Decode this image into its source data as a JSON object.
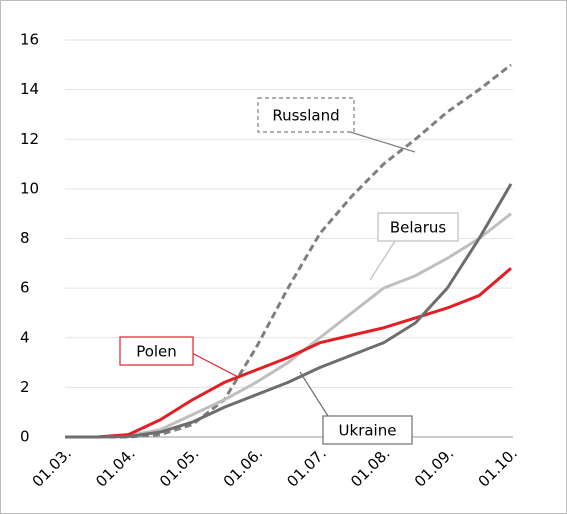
{
  "chart_data": {
    "type": "line",
    "categories": [
      "01.03.",
      null,
      "01.04.",
      null,
      "01.05.",
      null,
      "01.06.",
      null,
      "01.07.",
      null,
      "01.08.",
      null,
      "01.09.",
      null,
      "01.10."
    ],
    "series": [
      {
        "name": "Russland",
        "color": "#7f7f7f",
        "dashed": true,
        "values": [
          0,
          0,
          0,
          0.1,
          0.5,
          1.5,
          3.6,
          6,
          8.2,
          9.7,
          11,
          12,
          13.1,
          14,
          15
        ]
      },
      {
        "name": "Belarus",
        "color": "#bfbfbf",
        "dashed": false,
        "values": [
          0,
          0,
          0.05,
          0.3,
          0.9,
          1.5,
          2.2,
          3,
          4,
          5,
          6,
          6.5,
          7.2,
          8,
          9
        ]
      },
      {
        "name": "Polen",
        "color": "#e31e24",
        "dashed": false,
        "values": [
          0,
          0,
          0.1,
          0.7,
          1.5,
          2.2,
          2.7,
          3.2,
          3.8,
          4.1,
          4.4,
          4.8,
          5.2,
          5.7,
          6.8
        ]
      },
      {
        "name": "Ukraine",
        "color": "#6d6d6d",
        "dashed": false,
        "values": [
          0,
          0,
          0.02,
          0.2,
          0.6,
          1.2,
          1.7,
          2.2,
          2.8,
          3.3,
          3.8,
          4.6,
          6,
          8,
          10.2
        ]
      }
    ],
    "ylim": [
      0,
      16
    ],
    "yticks": [
      0,
      2,
      4,
      6,
      8,
      10,
      12,
      14,
      16
    ],
    "grid": true
  }
}
